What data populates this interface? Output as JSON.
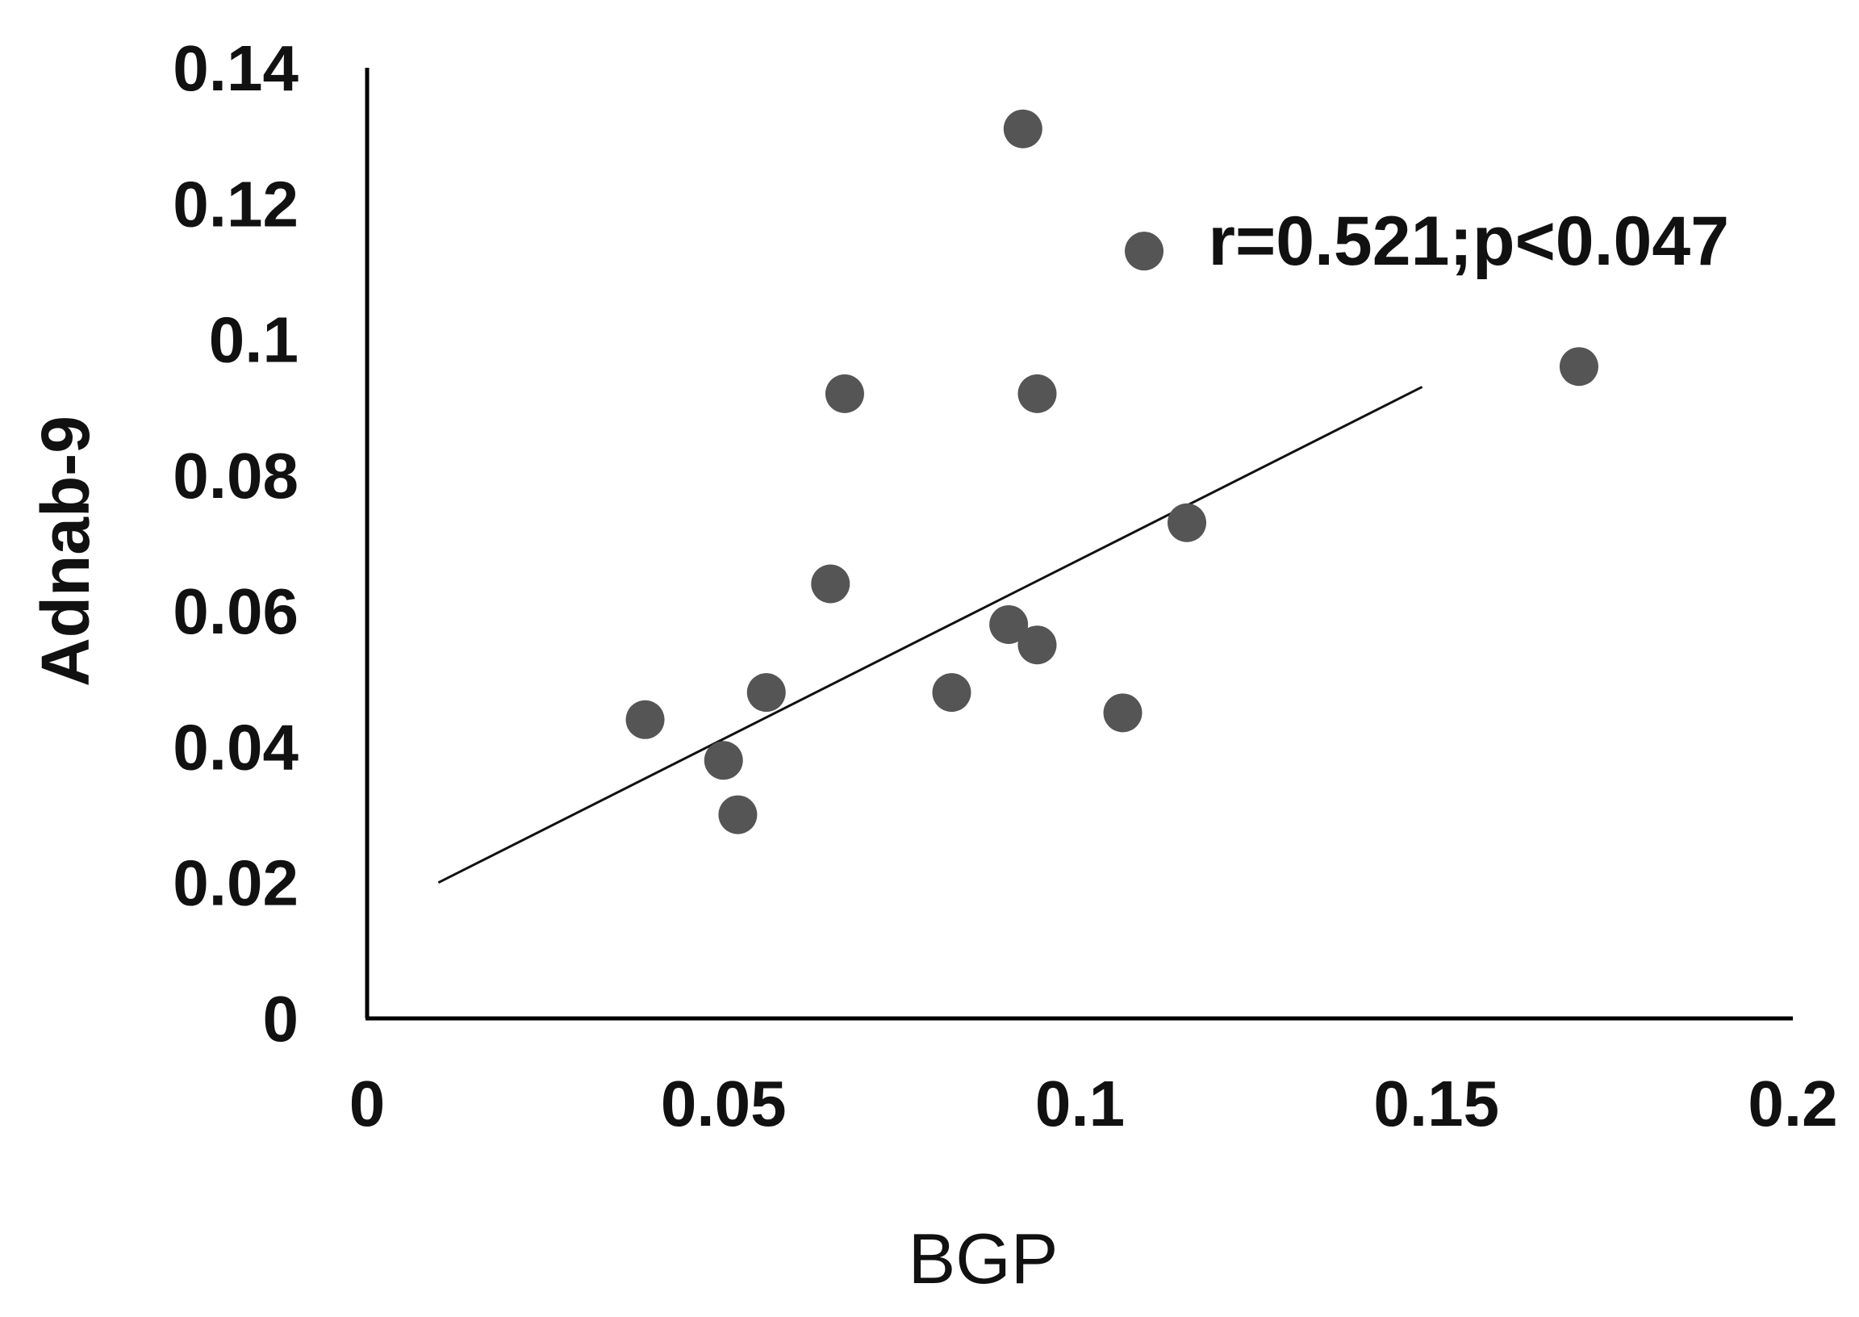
{
  "chart_data": {
    "type": "scatter",
    "xlabel": "BGP",
    "ylabel": "Adnab-9",
    "xlim": [
      0,
      0.2
    ],
    "ylim": [
      0,
      0.14
    ],
    "x_ticks": [
      {
        "value": 0,
        "label": "0"
      },
      {
        "value": 0.05,
        "label": "0.05"
      },
      {
        "value": 0.1,
        "label": "0.1"
      },
      {
        "value": 0.15,
        "label": "0.15"
      },
      {
        "value": 0.2,
        "label": "0.2"
      }
    ],
    "y_ticks": [
      {
        "value": 0,
        "label": "0"
      },
      {
        "value": 0.02,
        "label": "0.02"
      },
      {
        "value": 0.04,
        "label": "0.04"
      },
      {
        "value": 0.06,
        "label": "0.06"
      },
      {
        "value": 0.08,
        "label": "0.08"
      },
      {
        "value": 0.1,
        "label": "0.1"
      },
      {
        "value": 0.12,
        "label": "0.12"
      },
      {
        "value": 0.14,
        "label": "0.14"
      }
    ],
    "grid": false,
    "legend": "none",
    "point_color": "#555555",
    "line_color": "#111111",
    "points": [
      {
        "x": 0.092,
        "y": 0.131
      },
      {
        "x": 0.109,
        "y": 0.113
      },
      {
        "x": 0.067,
        "y": 0.092
      },
      {
        "x": 0.094,
        "y": 0.092
      },
      {
        "x": 0.17,
        "y": 0.096
      },
      {
        "x": 0.115,
        "y": 0.073
      },
      {
        "x": 0.065,
        "y": 0.064
      },
      {
        "x": 0.09,
        "y": 0.058
      },
      {
        "x": 0.094,
        "y": 0.055
      },
      {
        "x": 0.056,
        "y": 0.048
      },
      {
        "x": 0.082,
        "y": 0.048
      },
      {
        "x": 0.039,
        "y": 0.044
      },
      {
        "x": 0.106,
        "y": 0.045
      },
      {
        "x": 0.05,
        "y": 0.038
      },
      {
        "x": 0.052,
        "y": 0.03
      }
    ],
    "trendline": {
      "x_start": 0.01,
      "y_start": 0.02,
      "x_end": 0.148,
      "y_end": 0.093
    },
    "annotation": {
      "text": "r=0.521;p<0.047",
      "x": 0.118,
      "y": 0.111
    }
  }
}
